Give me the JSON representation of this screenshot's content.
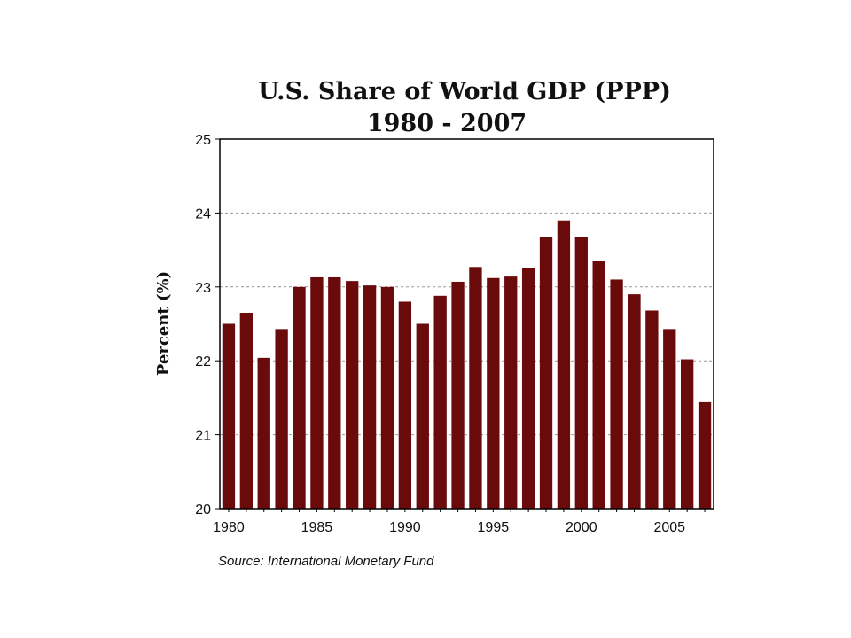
{
  "chart_data": {
    "type": "bar",
    "title": "U.S. Share of World GDP (PPP)",
    "subtitle": "1980 - 2007",
    "ylabel": "Percent (%)",
    "xlabel": "",
    "source": "Source: International Monetary Fund",
    "ylim": [
      20,
      25
    ],
    "yticks": [
      20,
      21,
      22,
      23,
      24,
      25
    ],
    "xticks": [
      1980,
      1985,
      1990,
      1995,
      2000,
      2005
    ],
    "grid": "horizontal dashed",
    "bar_color": "#6b0a0a",
    "categories": [
      1980,
      1981,
      1982,
      1983,
      1984,
      1985,
      1986,
      1987,
      1988,
      1989,
      1990,
      1991,
      1992,
      1993,
      1994,
      1995,
      1996,
      1997,
      1998,
      1999,
      2000,
      2001,
      2002,
      2003,
      2004,
      2005,
      2006,
      2007
    ],
    "values": [
      22.5,
      22.65,
      22.04,
      22.43,
      23.0,
      23.13,
      23.13,
      23.08,
      23.02,
      23.0,
      22.8,
      22.5,
      22.88,
      23.07,
      23.27,
      23.12,
      23.14,
      23.25,
      23.67,
      23.9,
      23.67,
      23.35,
      23.1,
      22.9,
      22.68,
      22.43,
      22.02,
      21.44
    ]
  }
}
